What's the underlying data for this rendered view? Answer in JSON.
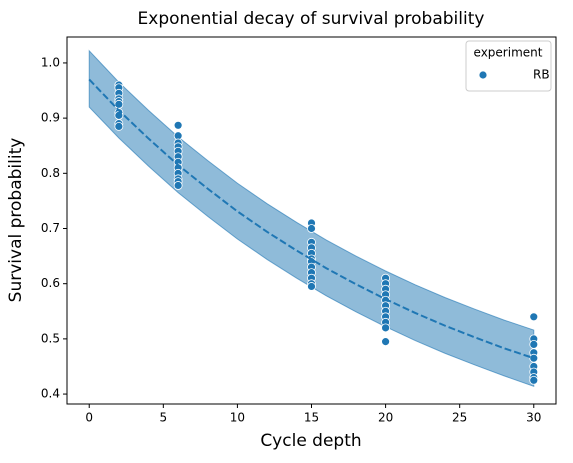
{
  "chart_data": {
    "type": "scatter",
    "title": "Exponential decay of survival probability",
    "x_label": "Cycle depth",
    "y_label": "Survival probability",
    "xlim": [
      -1.5,
      31.5
    ],
    "ylim": [
      0.382,
      1.047
    ],
    "xticks": [
      0,
      5,
      10,
      15,
      20,
      25,
      30
    ],
    "yticks": [
      0.4,
      0.5,
      0.6,
      0.7,
      0.8,
      0.9,
      {
        "value": 1,
        "label": "1.0"
      }
    ],
    "legend_title": "experiment",
    "legend_position": "upper right",
    "series": [
      {
        "name": "RB",
        "color": "#1f77b4",
        "x": [
          2,
          2,
          2,
          2,
          2,
          2,
          2,
          2,
          2,
          2,
          6,
          6,
          6,
          6,
          6,
          6,
          6,
          6,
          6,
          6,
          6,
          6,
          15,
          15,
          15,
          15,
          15,
          15,
          15,
          15,
          15,
          15,
          15,
          15,
          20,
          20,
          20,
          20,
          20,
          20,
          20,
          20,
          20,
          20,
          20,
          30,
          30,
          30,
          30,
          30,
          30,
          30,
          30,
          30
        ],
        "values": [
          0.96,
          0.955,
          0.945,
          0.935,
          0.93,
          0.925,
          0.91,
          0.905,
          0.89,
          0.885,
          0.887,
          0.868,
          0.855,
          0.848,
          0.84,
          0.83,
          0.82,
          0.81,
          0.8,
          0.79,
          0.785,
          0.778,
          0.71,
          0.7,
          0.675,
          0.665,
          0.655,
          0.645,
          0.64,
          0.63,
          0.62,
          0.61,
          0.6,
          0.595,
          0.61,
          0.6,
          0.59,
          0.58,
          0.57,
          0.56,
          0.55,
          0.54,
          0.53,
          0.52,
          0.495,
          0.54,
          0.5,
          0.49,
          0.475,
          0.465,
          0.45,
          0.44,
          0.43,
          0.425
        ]
      }
    ],
    "fit": {
      "color": "#1f77b4",
      "x": [
        0,
        2,
        4,
        6,
        8,
        10,
        12,
        14,
        16,
        18,
        20,
        22,
        24,
        26,
        28,
        30
      ],
      "values": [
        0.97,
        0.914,
        0.863,
        0.815,
        0.772,
        0.731,
        0.694,
        0.66,
        0.628,
        0.599,
        0.572,
        0.547,
        0.524,
        0.503,
        0.483,
        0.465
      ],
      "upper": [
        1.022,
        0.965,
        0.914,
        0.866,
        0.823,
        0.782,
        0.745,
        0.711,
        0.679,
        0.65,
        0.623,
        0.598,
        0.575,
        0.554,
        0.534,
        0.516
      ],
      "lower": [
        0.92,
        0.864,
        0.813,
        0.765,
        0.722,
        0.681,
        0.644,
        0.61,
        0.578,
        0.549,
        0.522,
        0.497,
        0.474,
        0.453,
        0.433,
        0.414
      ]
    }
  }
}
